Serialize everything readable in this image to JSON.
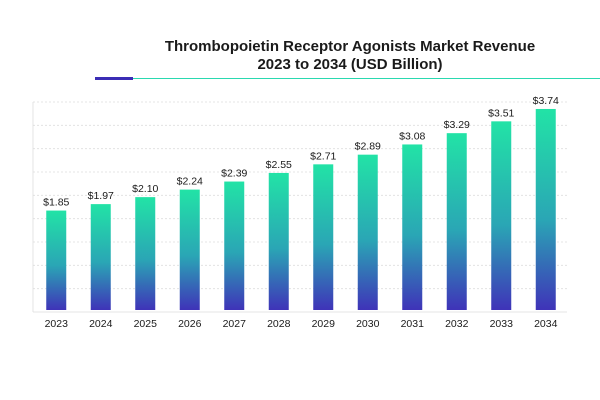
{
  "header": {
    "title_line1": "Thrombopoietin Receptor Agonists Market Revenue",
    "title_line2": "2023 to 2034 (USD Billion)"
  },
  "colors": {
    "accent_dark": "#3b2db5",
    "accent_teal": "#2ad9b0",
    "bar_top": "#22e3a6",
    "bar_bottom": "#3f33b8",
    "grid": "#dddddd"
  },
  "chart_data": {
    "type": "bar",
    "title": "Thrombopoietin Receptor Agonists Market Revenue 2023 to 2034 (USD Billion)",
    "xlabel": "",
    "ylabel": "",
    "categories": [
      "2023",
      "2024",
      "2025",
      "2026",
      "2027",
      "2028",
      "2029",
      "2030",
      "2031",
      "2032",
      "2033",
      "2034"
    ],
    "values": [
      1.85,
      1.97,
      2.1,
      2.24,
      2.39,
      2.55,
      2.71,
      2.89,
      3.08,
      3.29,
      3.51,
      3.74
    ],
    "value_labels": [
      "$1.85",
      "$1.97",
      "$2.10",
      "$2.24",
      "$2.39",
      "$2.55",
      "$2.71",
      "$2.89",
      "$3.08",
      "$3.29",
      "$3.51",
      "$3.74"
    ],
    "ylim": [
      0,
      4.0
    ],
    "grid": true,
    "legend": "none"
  }
}
